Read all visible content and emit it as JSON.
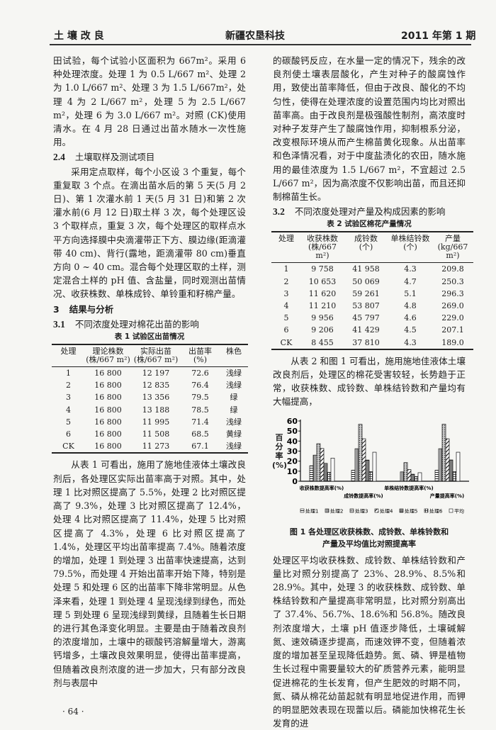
{
  "header": {
    "section": "土 壤 改 良",
    "journal": "新疆农垦科技",
    "issue": "2011 年第 1 期"
  },
  "left": {
    "p1": "田试验，每个试验小区面积为 667m²。采用 6 种处理浓度。处理 1 为 0.5 L/667 m²、处理 2 为 1.0 L/667 m²、处理 3 为 1.5 L/667m²，处理 4 为 2 L/667 m²，处理 5 为 2.5 L/667 m²，处理 6 为 3.0 L/667 m²。对照 (CK)使用清水。在 4 月 28 日通过出苗水随水一次性施用。",
    "h24_num": "2.4",
    "h24_title": "土壤取样及测试项目",
    "p2": "采用定点取样，每个小区设 3 个重复，每个重复取 3 个点。在滴出苗水后的第 5 天(5 月 2 日)、第 1 次灌水前 1 天(5 月 31 日)和第 2 次灌水前(6 月 12 日)取土样 3 次，每个处理区设 3 个取样点，重复 3 次，每个处理区的取样点水平方向选择膜中央滴灌带正下方、膜边缘(距滴灌带 40 cm)、背行(露地，距滴灌带 80 cm)垂直方向 0 ~ 40 cm。混合每个处理区取的土样，测定混合土样的 pH 值、含盐量，同时观测出苗情况、收获株数、单株成铃、单铃重和籽棉产量。",
    "h3_num": "3",
    "h3_title": "结果与分析",
    "h31_num": "3.1",
    "h31_title": "不同浓度处理对棉花出苗的影响",
    "p3": "从表 1 可看出，施用了施地佳液体土壤改良剂后，各处理区实际出苗率高于对照。其中，处理 1 比对照区提高了 5.5%，处理 2 比对照区提高了 9.3%，处理 3 比对照区提高了 12.4%，处理 4 比对照区提高了 11.4%，处理 5 比对照区提高了 4.3%，处理 6 比对照区提高了 1.4%，处理区平均出苗率提高 7.4%。随着浓度的增加，处理 1 到处理 3 出苗率快速提高，达到 79.5%，而处理 4 开始出苗率开始下降，特别是处理 5 和处理 6 区的出苗率下降非常明显。从色泽来看，处理 1 到处理 4 呈现浅绿到绿色，而处理 5 到处理 6 呈现浅绿到黄绿，且随着生长日期的进行其色泽变化明显。主要是由于随着改良剂的浓度增加，土壤中的碳酸钙溶解量增大，游离钙增多，土壤改良效果明显，使得出苗率提高，但随着改良剂浓度的进一步加大，只有部分改良剂与表层中"
  },
  "table1": {
    "caption": "表 1  试验区出苗情况",
    "headers": [
      {
        "label": "处理",
        "unit": ""
      },
      {
        "label": "理论株数",
        "unit": "(株/667 m²)"
      },
      {
        "label": "实际出苗",
        "unit": "(株/667 m²)"
      },
      {
        "label": "出苗率",
        "unit": "(%)"
      },
      {
        "label": "株色",
        "unit": ""
      }
    ],
    "rows": [
      [
        "1",
        "16 800",
        "12 197",
        "72.6",
        "浅绿"
      ],
      [
        "2",
        "16 800",
        "12 835",
        "76.4",
        "浅绿"
      ],
      [
        "3",
        "16 800",
        "13 356",
        "79.5",
        "绿"
      ],
      [
        "4",
        "16 800",
        "13 188",
        "78.5",
        "绿"
      ],
      [
        "5",
        "16 800",
        "11 995",
        "71.4",
        "浅绿"
      ],
      [
        "6",
        "16 800",
        "11 508",
        "68.5",
        "黄绿"
      ],
      [
        "CK",
        "16 800",
        "11 273",
        "67.1",
        "浅绿"
      ]
    ]
  },
  "right": {
    "p4": "的碳酸钙反应，在水量一定的情况下，残余的改良剂使土壤表层酸化，产生对种子的酸腐蚀作用，致使出苗率降低，但由于改良、酸化的不均匀性，使得在处理浓度的设置范围内均比对照出苗率高。由于改良剂是极强酸性制剂，高浓度时对种子发芽产生了酸腐蚀作用，抑制根系分泌，改变根际环境从而产生棉苗黄化现象。从出苗率和色泽情况看，对于中度盐渍化的农田，随水施用的最佳浓度为 1.5 L/667 m²，不宜超过 2.5 L/667 m²，因为高浓度不仅影响出苗，而且还抑制棉苗生长。",
    "h32_num": "3.2",
    "h32_title": "不同浓度处理对产量及构成因素的影响",
    "p5": "从表 2 和图 1 可看出，施用施地佳液体土壤改良剂后，处理区的棉花受害较轻，长势趋于正常，收获株数、成铃数、单株结铃数和产量均有大幅提高，",
    "p6": "处理区平均收获株数、成铃数、单株结铃数和产量比对照分别提高了 23%、28.9%、8.5%和 28.9%。其中，处理 3 的收获株数、成铃数、单株结铃数和产量提高非常明显，比对照分别高出了 37.4%、56.7%、18.6%和 56.8%。随改良剂浓度增大，土壤 pH 值逐步降低，土壤碱解氮、速效磷逐步提高，而速效钾不变，但随着浓度的增加甚至呈现降低趋势。氮、磷、钾是植物生长过程中需要量较大的矿质营养元素，能明显促进棉花的生长发育，但产生肥效的时期不同，氮、磷从棉花幼苗起就有明显地促进作用，而钾的明显肥效表现在现蕾以后。磷能加快棉花生长发育的进"
  },
  "table2": {
    "caption": "表 2  试验区棉花产量情况",
    "headers": [
      {
        "label": "处理",
        "unit": ""
      },
      {
        "label": "收获株数",
        "unit": "(株/667 m²)"
      },
      {
        "label": "成铃数",
        "unit": "(个)"
      },
      {
        "label": "单株结铃数",
        "unit": "(个)"
      },
      {
        "label": "产量",
        "unit": "(kg/667 m²)"
      }
    ],
    "rows": [
      [
        "1",
        "9 758",
        "41 958",
        "4.3",
        "209.8"
      ],
      [
        "2",
        "10 653",
        "50 069",
        "4.7",
        "250.3"
      ],
      [
        "3",
        "11 620",
        "59 261",
        "5.1",
        "296.3"
      ],
      [
        "4",
        "11 210",
        "53 807",
        "4.8",
        "269.0"
      ],
      [
        "5",
        "9 956",
        "45 797",
        "4.6",
        "229.0"
      ],
      [
        "6",
        "9 206",
        "41 429",
        "4.5",
        "207.1"
      ],
      [
        "CK",
        "8 455",
        "37 810",
        "4.3",
        "189.0"
      ]
    ]
  },
  "figure1": {
    "caption_line1": "图 1  各处理区收获株数、成铃数、单株铃数和",
    "caption_line2": "产量及平均值比对照提高率"
  },
  "chart_data": {
    "type": "bar",
    "title": "",
    "xlabel": "",
    "ylabel": "百分率(%)",
    "ylim": [
      0,
      60
    ],
    "yticks": [
      0,
      10,
      20,
      30,
      40,
      50,
      60
    ],
    "categories": [
      "收获株数提高率(%)",
      "成铃数提高率(%)",
      "单株结铃数提高率(%)",
      "产量提高率(%)"
    ],
    "series": [
      {
        "name": "处理1",
        "values": [
          15.4,
          11.0,
          0,
          11.0
        ]
      },
      {
        "name": "处理2",
        "values": [
          26.0,
          32.4,
          9.3,
          32.4
        ]
      },
      {
        "name": "处理3",
        "values": [
          37.4,
          56.7,
          18.6,
          56.8
        ]
      },
      {
        "name": "处理4",
        "values": [
          32.6,
          42.3,
          11.6,
          42.3
        ]
      },
      {
        "name": "处理5",
        "values": [
          17.8,
          21.1,
          7.0,
          21.2
        ]
      },
      {
        "name": "处理6",
        "values": [
          8.9,
          9.6,
          4.7,
          9.6
        ]
      },
      {
        "name": "平均",
        "values": [
          23.0,
          28.9,
          8.5,
          28.9
        ]
      }
    ],
    "legend_position": "bottom",
    "grid": false
  },
  "footer": {
    "page_number": "· 64 ·"
  }
}
